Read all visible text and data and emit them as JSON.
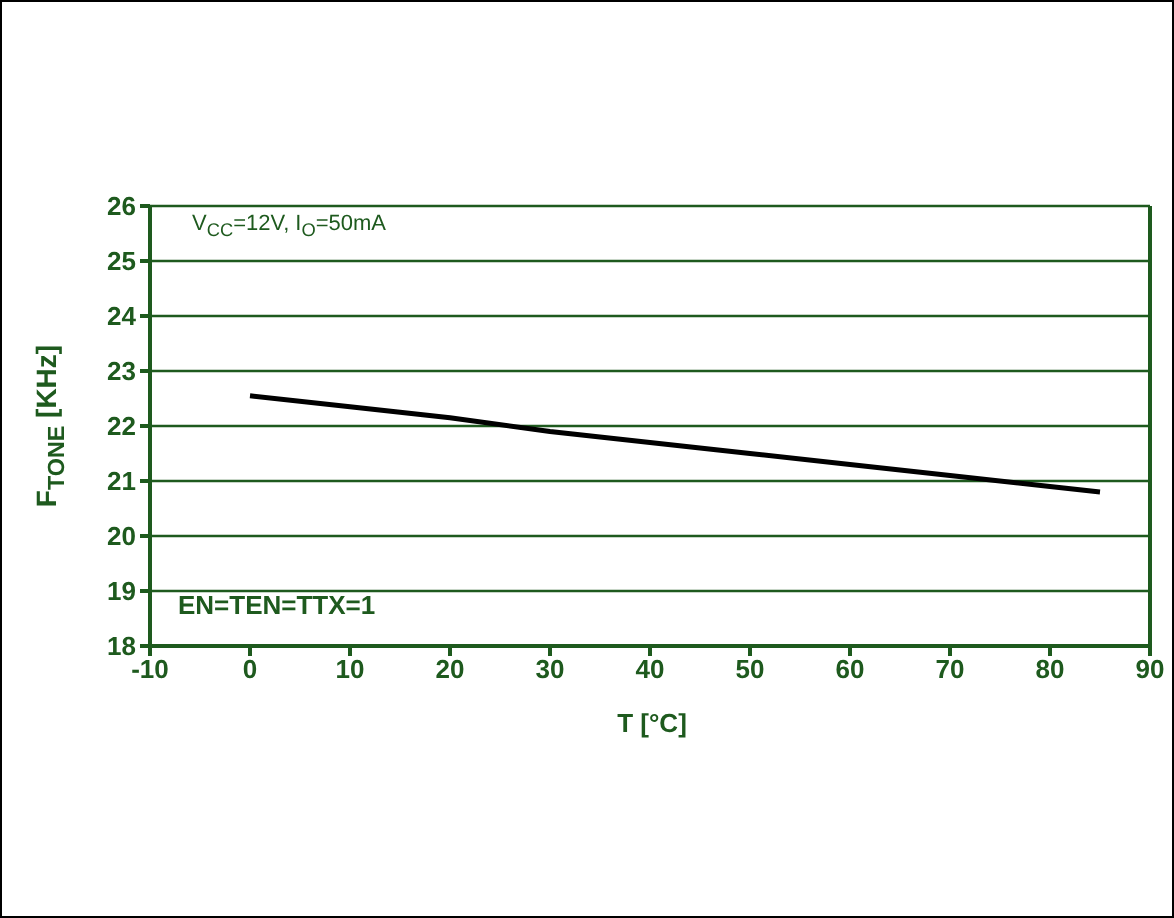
{
  "chart_data": {
    "type": "line",
    "xlabel": "T [°C]",
    "ylabel": "F$_{TONE}$ [KHz]",
    "x": [
      0,
      10,
      20,
      30,
      40,
      50,
      60,
      70,
      80,
      85
    ],
    "series": [
      {
        "color": "#000000",
        "values": [
          22.55,
          22.35,
          22.15,
          21.9,
          21.7,
          21.5,
          21.3,
          21.1,
          20.9,
          20.8
        ]
      }
    ],
    "xlim": [
      -10,
      90
    ],
    "xticks": [
      -10,
      0,
      10,
      20,
      30,
      40,
      50,
      60,
      70,
      80,
      90
    ],
    "ylim": [
      18,
      26
    ],
    "yticks": [
      18,
      19,
      20,
      21,
      22,
      23,
      24,
      25,
      26
    ],
    "grid": "y",
    "legend": false,
    "marker": "none",
    "line_style": "solid",
    "annotations": [
      "V$_{CC}$=12V, I$_{O}$=50mA",
      "EN=TEN=TTX=1"
    ]
  }
}
